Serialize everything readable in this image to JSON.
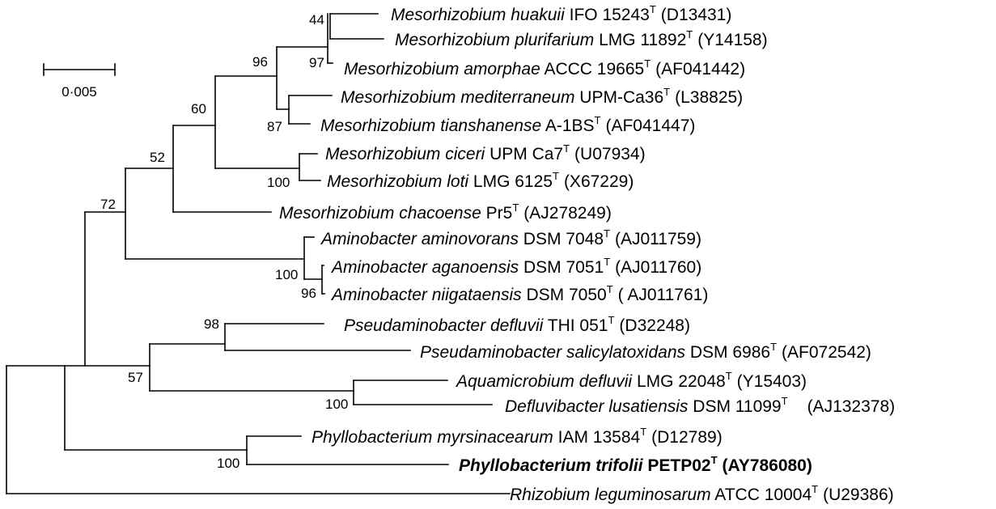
{
  "scale_bar": {
    "label": "0·005"
  },
  "taxa": [
    {
      "id": "huakuii",
      "species": "Mesorhizobium huakuii",
      "strain": "IFO 15243",
      "type_mark": "T",
      "accession": "(D13431)",
      "bold": false
    },
    {
      "id": "plurifarium",
      "species": "Mesorhizobium plurifarium",
      "strain": "LMG 11892",
      "type_mark": "T",
      "accession": "(Y14158)",
      "bold": false
    },
    {
      "id": "amorphae",
      "species": "Mesorhizobium amorphae",
      "strain": "ACCC 19665",
      "type_mark": "T",
      "accession": "(AF041442)",
      "bold": false
    },
    {
      "id": "mediterraneum",
      "species": "Mesorhizobium mediterraneum",
      "strain": "UPM-Ca36",
      "type_mark": "T",
      "accession": "(L38825)",
      "bold": false
    },
    {
      "id": "tianshanense",
      "species": "Mesorhizobium tianshanense",
      "strain": "A-1BS",
      "type_mark": "T",
      "accession": "(AF041447)",
      "bold": false
    },
    {
      "id": "ciceri",
      "species": "Mesorhizobium ciceri",
      "strain": "UPM Ca7",
      "type_mark": "T",
      "accession": "(U07934)",
      "bold": false
    },
    {
      "id": "loti",
      "species": "Mesorhizobium loti",
      "strain": "LMG 6125",
      "type_mark": "T",
      "accession": "(X67229)",
      "bold": false
    },
    {
      "id": "chacoense",
      "species": "Mesorhizobium chacoense",
      "strain": "Pr5",
      "type_mark": "T",
      "accession": "(AJ278249)",
      "bold": false
    },
    {
      "id": "aminovorans",
      "species": "Aminobacter aminovorans",
      "strain": "DSM 7048",
      "type_mark": "T",
      "accession": "(AJ011759)",
      "bold": false
    },
    {
      "id": "aganoensis",
      "species": "Aminobacter aganoensis",
      "strain": "DSM 7051",
      "type_mark": "T",
      "accession": "(AJ011760)",
      "bold": false
    },
    {
      "id": "niigataensis",
      "species": "Aminobacter niigataensis",
      "strain": "DSM 7050",
      "type_mark": "T",
      "accession": "( AJ011761)",
      "bold": false
    },
    {
      "id": "pdefluvii",
      "species": "Pseudaminobacter defluvii",
      "strain": "THI 051",
      "type_mark": "T",
      "accession": "(D32248)",
      "bold": false
    },
    {
      "id": "salicylatoxidans",
      "species": "Pseudaminobacter salicylatoxidans",
      "strain": "DSM 6986",
      "type_mark": "T",
      "accession": "(AF072542)",
      "bold": false
    },
    {
      "id": "aquamicrobium",
      "species": "Aquamicrobium defluvii",
      "strain": "LMG 22048",
      "type_mark": "T",
      "accession": "(Y15403)",
      "bold": false
    },
    {
      "id": "defluvibacter",
      "species": "Defluvibacter lusatiensis",
      "strain": "DSM 11099",
      "type_mark": "T",
      "accession": "(AJ132378)",
      "bold": false
    },
    {
      "id": "myrsinacearum",
      "species": "Phyllobacterium myrsinacearum",
      "strain": "IAM 13584",
      "type_mark": "T",
      "accession": "(D12789)",
      "bold": false
    },
    {
      "id": "trifolii",
      "species": "Phyllobacterium trifolii",
      "strain": "PETP02",
      "type_mark": "T",
      "accession": "(AY786080)",
      "bold": true
    },
    {
      "id": "rhizobium",
      "species": "Rhizobium leguminosarum",
      "strain": "ATCC 10004",
      "type_mark": "T",
      "accession": "(U29386)",
      "bold": false
    }
  ],
  "bootstrap": {
    "huakuii_plurifarium": "44",
    "amorphae_clade": "97",
    "huakuii_amorphae_group": "96",
    "mediterraneum_tianshanense": "87",
    "mesorhizobium_core": "60",
    "ciceri_loti": "100",
    "mesorhizobium_all": "52",
    "meso_amino": "72",
    "aminobacter": "100",
    "aganoensis_niigataensis": "96",
    "pseudaminobacter": "98",
    "pseudamino_aquamicrobium": "57",
    "aquamicrobium_defluvibacter": "100",
    "phyllobacterium": "100"
  }
}
